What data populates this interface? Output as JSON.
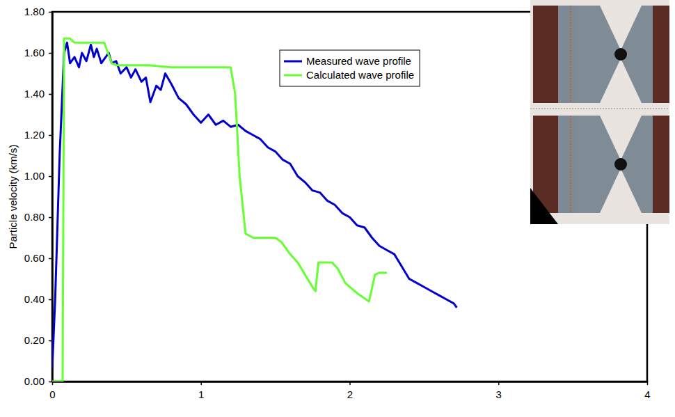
{
  "chart_data": {
    "type": "line",
    "y_label": "Particle velocity (km/s)",
    "xlim": [
      0,
      4
    ],
    "xticks": [
      0,
      1,
      2,
      3,
      4
    ],
    "ylim": [
      0,
      1.8
    ],
    "yticks": [
      {
        "value": 0,
        "label": "0.00"
      },
      {
        "value": 0.2,
        "label": "0.20"
      },
      {
        "value": 0.4,
        "label": "0.40"
      },
      {
        "value": 0.6,
        "label": "0.60"
      },
      {
        "value": 0.8,
        "label": "0.80"
      },
      {
        "value": 1,
        "label": "1.00"
      },
      {
        "value": 1.2,
        "label": "1.20"
      },
      {
        "value": 1.4,
        "label": "1.40"
      },
      {
        "value": 1.6,
        "label": "1.60"
      },
      {
        "value": 1.8,
        "label": "1.80"
      }
    ],
    "grid": false,
    "legend": "top",
    "series": [
      {
        "name": "Measured wave profile",
        "color": "#0000cc",
        "line_style": "solid",
        "x": [
          0,
          0.02,
          0.05,
          0.08,
          0.1,
          0.12,
          0.15,
          0.18,
          0.2,
          0.23,
          0.26,
          0.28,
          0.3,
          0.33,
          0.36,
          0.38,
          0.4,
          0.43,
          0.46,
          0.5,
          0.53,
          0.56,
          0.6,
          0.63,
          0.66,
          0.7,
          0.73,
          0.76,
          0.8,
          0.85,
          0.9,
          0.95,
          1.0,
          1.05,
          1.1,
          1.15,
          1.2,
          1.25,
          1.3,
          1.35,
          1.4,
          1.45,
          1.5,
          1.55,
          1.6,
          1.65,
          1.7,
          1.75,
          1.8,
          1.85,
          1.9,
          1.95,
          2.0,
          2.05,
          2.1,
          2.15,
          2.2,
          2.25,
          2.3,
          2.35,
          2.4,
          2.45,
          2.5,
          2.55,
          2.6,
          2.65,
          2.7,
          2.72
        ],
        "values": [
          0.06,
          0.4,
          1.1,
          1.6,
          1.65,
          1.55,
          1.58,
          1.53,
          1.6,
          1.56,
          1.64,
          1.58,
          1.62,
          1.55,
          1.58,
          1.6,
          1.55,
          1.56,
          1.5,
          1.53,
          1.48,
          1.52,
          1.46,
          1.48,
          1.36,
          1.44,
          1.42,
          1.5,
          1.45,
          1.38,
          1.35,
          1.3,
          1.26,
          1.3,
          1.25,
          1.27,
          1.24,
          1.25,
          1.22,
          1.2,
          1.18,
          1.14,
          1.12,
          1.08,
          1.06,
          1.0,
          0.97,
          0.93,
          0.92,
          0.88,
          0.86,
          0.82,
          0.8,
          0.76,
          0.75,
          0.7,
          0.66,
          0.64,
          0.62,
          0.56,
          0.5,
          0.48,
          0.46,
          0.44,
          0.42,
          0.4,
          0.38,
          0.36
        ]
      },
      {
        "name": "Calculated wave profile",
        "color": "#66ff33",
        "line_style": "solid",
        "x": [
          0,
          0.07,
          0.08,
          0.12,
          0.15,
          0.35,
          0.4,
          0.43,
          0.65,
          0.8,
          1.2,
          1.23,
          1.26,
          1.3,
          1.35,
          1.5,
          1.54,
          1.6,
          1.65,
          1.7,
          1.75,
          1.77,
          1.79,
          1.88,
          1.92,
          1.97,
          2.05,
          2.13,
          2.17,
          2.2,
          2.25
        ],
        "values": [
          0,
          0,
          1.67,
          1.67,
          1.65,
          1.65,
          1.55,
          1.54,
          1.54,
          1.53,
          1.53,
          1.4,
          1.0,
          0.72,
          0.7,
          0.7,
          0.68,
          0.62,
          0.58,
          0.52,
          0.46,
          0.44,
          0.58,
          0.58,
          0.55,
          0.48,
          0.43,
          0.39,
          0.52,
          0.53,
          0.53
        ]
      }
    ]
  }
}
